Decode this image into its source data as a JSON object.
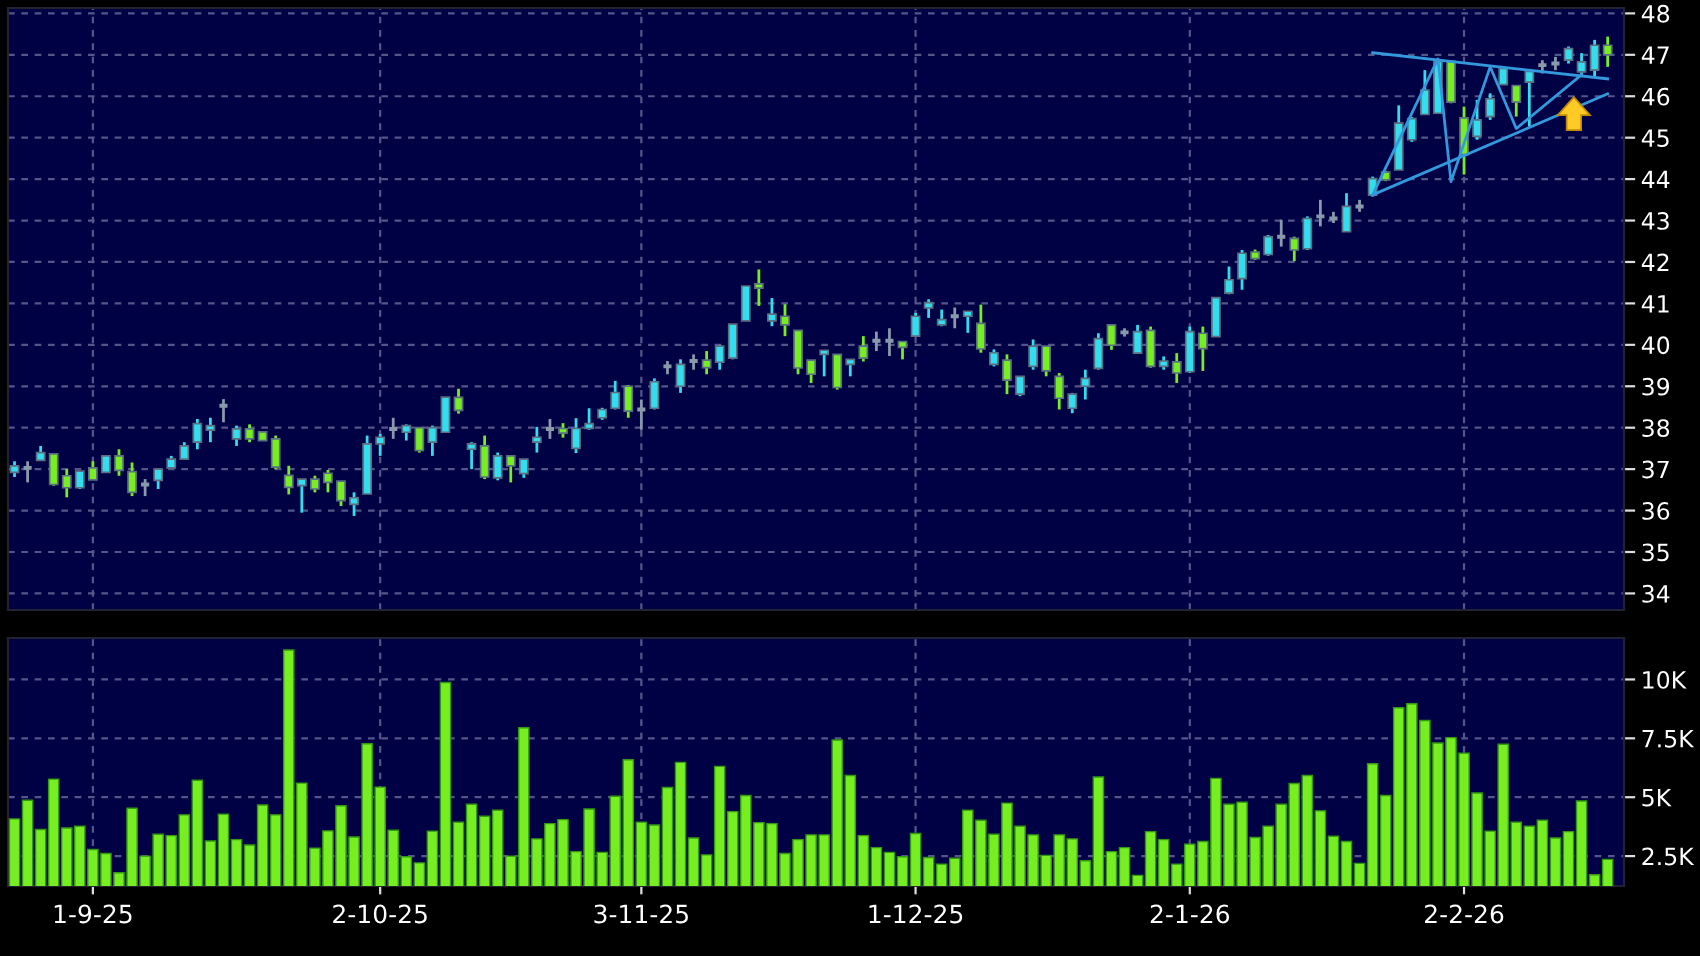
{
  "chart_data": [
    {
      "type": "candlestick",
      "categories": [
        null,
        null,
        null,
        null,
        null,
        null,
        null,
        null,
        null,
        null,
        null,
        null,
        null,
        null,
        null,
        null,
        null,
        null,
        null,
        null,
        null,
        null,
        null,
        null,
        null,
        null,
        null,
        null,
        null,
        null,
        null,
        null,
        null,
        null,
        null,
        null,
        null,
        null,
        null,
        null,
        null,
        null,
        null,
        null,
        null,
        null,
        null,
        null,
        null,
        null,
        null,
        null,
        null,
        null,
        null,
        null,
        null,
        null,
        null,
        null,
        null,
        null,
        null,
        null,
        null,
        null,
        null,
        null,
        null,
        null,
        null,
        null,
        null,
        null,
        null,
        null,
        null,
        null,
        null,
        null,
        null,
        null,
        null,
        null,
        null,
        null,
        null,
        null,
        null,
        null,
        null,
        null,
        null,
        null,
        null,
        null,
        null,
        null,
        null,
        null,
        null,
        null,
        null,
        null,
        null,
        null,
        null,
        null,
        null,
        null,
        null,
        null,
        null,
        null,
        null,
        null,
        null,
        null,
        null,
        null,
        null,
        null,
        null
      ],
      "ohlc": [
        [
          36.92,
          37.19,
          36.81,
          37.08
        ],
        [
          37.03,
          37.19,
          36.68,
          37.03
        ],
        [
          37.21,
          37.56,
          37.21,
          37.4
        ],
        [
          37.37,
          37.37,
          36.6,
          36.63
        ],
        [
          36.84,
          37.0,
          36.32,
          36.55
        ],
        [
          36.55,
          36.95,
          36.52,
          36.95
        ],
        [
          37.03,
          37.19,
          36.74,
          36.74
        ],
        [
          36.92,
          37.32,
          36.92,
          37.32
        ],
        [
          37.32,
          37.48,
          36.84,
          36.97
        ],
        [
          36.94,
          37.16,
          36.35,
          36.44
        ],
        [
          36.63,
          36.76,
          36.35,
          36.63
        ],
        [
          36.73,
          37.0,
          36.52,
          37.0
        ],
        [
          37.03,
          37.32,
          37.03,
          37.24
        ],
        [
          37.24,
          37.65,
          37.24,
          37.56
        ],
        [
          37.65,
          38.21,
          37.48,
          38.1
        ],
        [
          37.94,
          38.24,
          37.65,
          38.05
        ],
        [
          38.53,
          38.69,
          38.13,
          38.53
        ],
        [
          37.73,
          38.05,
          37.56,
          37.97
        ],
        [
          37.97,
          38.08,
          37.65,
          37.73
        ],
        [
          37.9,
          37.9,
          37.69,
          37.69
        ],
        [
          37.73,
          37.81,
          37.0,
          37.05
        ],
        [
          36.85,
          37.08,
          36.39,
          36.56
        ],
        [
          36.6,
          36.76,
          35.95,
          36.76
        ],
        [
          36.76,
          36.84,
          36.44,
          36.52
        ],
        [
          36.9,
          36.98,
          36.44,
          36.68
        ],
        [
          36.71,
          36.71,
          36.11,
          36.24
        ],
        [
          36.15,
          36.44,
          35.87,
          36.31
        ],
        [
          36.4,
          37.81,
          36.4,
          37.61
        ],
        [
          37.61,
          37.85,
          37.32,
          37.77
        ],
        [
          37.97,
          38.24,
          37.73,
          37.97
        ],
        [
          37.89,
          38.08,
          37.69,
          38.05
        ],
        [
          38.0,
          38.0,
          37.4,
          37.45
        ],
        [
          37.65,
          38.05,
          37.32,
          38.0
        ],
        [
          37.89,
          38.74,
          37.89,
          38.74
        ],
        [
          38.73,
          38.94,
          38.34,
          38.42
        ],
        [
          37.48,
          37.65,
          37.0,
          37.61
        ],
        [
          37.56,
          37.81,
          36.76,
          36.81
        ],
        [
          36.79,
          37.4,
          36.73,
          37.32
        ],
        [
          37.32,
          37.32,
          36.68,
          37.08
        ],
        [
          36.89,
          37.24,
          36.79,
          37.24
        ],
        [
          37.65,
          38.02,
          37.4,
          37.77
        ],
        [
          37.97,
          38.21,
          37.73,
          37.97
        ],
        [
          37.98,
          38.11,
          37.76,
          37.87
        ],
        [
          37.5,
          38.23,
          37.39,
          37.98
        ],
        [
          37.98,
          38.47,
          37.95,
          38.1
        ],
        [
          38.24,
          38.48,
          38.19,
          38.44
        ],
        [
          38.47,
          39.13,
          38.44,
          38.85
        ],
        [
          39.0,
          39.03,
          38.24,
          38.4
        ],
        [
          38.44,
          38.68,
          37.95,
          38.44
        ],
        [
          38.47,
          39.19,
          38.44,
          39.11
        ],
        [
          39.48,
          39.61,
          39.29,
          39.48
        ],
        [
          39.0,
          39.65,
          38.84,
          39.53
        ],
        [
          39.61,
          39.77,
          39.4,
          39.61
        ],
        [
          39.63,
          39.85,
          39.29,
          39.45
        ],
        [
          39.58,
          40.0,
          39.4,
          39.97
        ],
        [
          39.68,
          40.5,
          39.65,
          40.5
        ],
        [
          40.58,
          41.42,
          40.58,
          41.42
        ],
        [
          41.47,
          41.82,
          40.94,
          41.37
        ],
        [
          40.58,
          41.13,
          40.45,
          40.74
        ],
        [
          40.69,
          40.98,
          40.21,
          40.48
        ],
        [
          40.35,
          40.35,
          39.29,
          39.44
        ],
        [
          39.63,
          39.63,
          39.08,
          39.29
        ],
        [
          39.77,
          39.87,
          39.24,
          39.87
        ],
        [
          39.77,
          39.77,
          38.92,
          38.97
        ],
        [
          39.53,
          39.65,
          39.24,
          39.65
        ],
        [
          39.97,
          40.21,
          39.6,
          39.68
        ],
        [
          40.1,
          40.32,
          39.85,
          40.1
        ],
        [
          40.1,
          40.4,
          39.73,
          40.1
        ],
        [
          40.08,
          40.08,
          39.65,
          39.94
        ],
        [
          40.21,
          40.77,
          40.21,
          40.69
        ],
        [
          40.89,
          41.1,
          40.65,
          41.02
        ],
        [
          40.48,
          40.85,
          40.45,
          40.61
        ],
        [
          40.69,
          40.9,
          40.4,
          40.69
        ],
        [
          40.69,
          40.81,
          40.29,
          40.81
        ],
        [
          40.52,
          40.97,
          39.81,
          39.9
        ],
        [
          39.53,
          39.89,
          39.48,
          39.81
        ],
        [
          39.63,
          39.77,
          38.81,
          39.15
        ],
        [
          38.81,
          39.24,
          38.76,
          39.24
        ],
        [
          39.48,
          40.13,
          39.4,
          39.97
        ],
        [
          39.97,
          39.97,
          39.24,
          39.37
        ],
        [
          39.24,
          39.32,
          38.44,
          38.71
        ],
        [
          38.47,
          38.84,
          38.35,
          38.81
        ],
        [
          39.0,
          39.4,
          38.68,
          39.19
        ],
        [
          39.43,
          40.28,
          39.4,
          40.15
        ],
        [
          40.48,
          40.48,
          39.88,
          39.99
        ],
        [
          40.3,
          40.4,
          40.2,
          40.3
        ],
        [
          39.8,
          40.48,
          39.8,
          40.32
        ],
        [
          40.35,
          40.44,
          39.45,
          39.48
        ],
        [
          39.48,
          39.72,
          39.4,
          39.61
        ],
        [
          39.59,
          39.8,
          39.08,
          39.32
        ],
        [
          39.35,
          40.44,
          39.32,
          40.32
        ],
        [
          40.28,
          40.44,
          39.37,
          39.91
        ],
        [
          40.2,
          41.14,
          40.2,
          41.14
        ],
        [
          41.25,
          41.89,
          41.22,
          41.57
        ],
        [
          41.6,
          42.29,
          41.33,
          42.21
        ],
        [
          42.24,
          42.3,
          42.05,
          42.08
        ],
        [
          42.18,
          42.65,
          42.15,
          42.61
        ],
        [
          42.61,
          43.02,
          42.37,
          42.61
        ],
        [
          42.57,
          42.61,
          42.02,
          42.29
        ],
        [
          42.32,
          43.1,
          42.29,
          43.05
        ],
        [
          43.1,
          43.5,
          42.86,
          43.1
        ],
        [
          43.05,
          43.21,
          42.94,
          43.05
        ],
        [
          42.73,
          43.66,
          42.73,
          43.34
        ],
        [
          43.34,
          43.5,
          43.21,
          43.34
        ],
        [
          43.61,
          44.06,
          43.58,
          44.01
        ],
        [
          44.17,
          44.2,
          43.95,
          43.98
        ],
        [
          44.22,
          45.78,
          44.22,
          45.35
        ],
        [
          44.95,
          45.5,
          44.9,
          45.46
        ],
        [
          45.56,
          46.63,
          45.56,
          46.15
        ],
        [
          45.59,
          46.87,
          45.59,
          46.84
        ],
        [
          46.84,
          46.87,
          45.83,
          45.86
        ],
        [
          45.48,
          45.75,
          44.11,
          44.59
        ],
        [
          45.03,
          45.91,
          44.95,
          45.43
        ],
        [
          45.51,
          46.07,
          45.43,
          45.94
        ],
        [
          46.28,
          46.71,
          46.28,
          46.67
        ],
        [
          46.26,
          46.26,
          45.51,
          45.86
        ],
        [
          46.34,
          46.63,
          45.27,
          46.6
        ],
        [
          46.75,
          46.87,
          46.55,
          46.75
        ],
        [
          46.79,
          46.95,
          46.63,
          46.79
        ],
        [
          46.87,
          47.2,
          46.79,
          47.15
        ],
        [
          46.59,
          47.04,
          46.52,
          46.83
        ],
        [
          46.63,
          47.36,
          46.47,
          47.23
        ],
        [
          47.23,
          47.44,
          46.71,
          47.0
        ]
      ],
      "colors": [
        "#33ddee",
        "#8899aa",
        "#33ddee",
        "#77ee22",
        "#77ee22",
        "#33ddee",
        "#77ee22",
        "#33ddee",
        "#77ee22",
        "#77ee22",
        "#8899aa",
        "#33ddee",
        "#33ddee",
        "#33ddee",
        "#33ddee",
        "#33ddee",
        "#8899aa",
        "#33ddee",
        "#77ee22",
        "#77ee22",
        "#77ee22",
        "#77ee22",
        "#33ddee",
        "#77ee22",
        "#77ee22",
        "#77ee22",
        "#33ddee",
        "#33ddee",
        "#33ddee",
        "#8899aa",
        "#33ddee",
        "#77ee22",
        "#33ddee",
        "#33ddee",
        "#77ee22",
        "#33ddee",
        "#77ee22",
        "#33ddee",
        "#77ee22",
        "#33ddee",
        "#33ddee",
        "#8899aa",
        "#77ee22",
        "#33ddee",
        "#33ddee",
        "#33ddee",
        "#33ddee",
        "#77ee22",
        "#8899aa",
        "#33ddee",
        "#8899aa",
        "#33ddee",
        "#8899aa",
        "#77ee22",
        "#33ddee",
        "#33ddee",
        "#33ddee",
        "#77ee22",
        "#33ddee",
        "#77ee22",
        "#77ee22",
        "#77ee22",
        "#33ddee",
        "#77ee22",
        "#33ddee",
        "#77ee22",
        "#8899aa",
        "#8899aa",
        "#77ee22",
        "#33ddee",
        "#33ddee",
        "#33ddee",
        "#8899aa",
        "#33ddee",
        "#77ee22",
        "#33ddee",
        "#77ee22",
        "#33ddee",
        "#33ddee",
        "#77ee22",
        "#77ee22",
        "#33ddee",
        "#33ddee",
        "#33ddee",
        "#77ee22",
        "#8899aa",
        "#33ddee",
        "#77ee22",
        "#33ddee",
        "#77ee22",
        "#33ddee",
        "#77ee22",
        "#33ddee",
        "#33ddee",
        "#33ddee",
        "#77ee22",
        "#33ddee",
        "#8899aa",
        "#77ee22",
        "#33ddee",
        "#8899aa",
        "#8899aa",
        "#33ddee",
        "#8899aa",
        "#33ddee",
        "#77ee22",
        "#33ddee",
        "#33ddee",
        "#33ddee",
        "#33ddee",
        "#77ee22",
        "#77ee22",
        "#33ddee",
        "#33ddee",
        "#33ddee",
        "#77ee22",
        "#33ddee",
        "#8899aa",
        "#8899aa",
        "#33ddee",
        "#33ddee",
        "#33ddee",
        "#77ee22"
      ],
      "series": [
        {
          "type": "line",
          "color": "#3399dd",
          "values": [
            null,
            null,
            null,
            null,
            null,
            null,
            null,
            null,
            null,
            null,
            null,
            null,
            null,
            null,
            null,
            null,
            null,
            null,
            null,
            null,
            null,
            null,
            null,
            null,
            null,
            null,
            null,
            null,
            null,
            null,
            null,
            null,
            null,
            null,
            null,
            null,
            null,
            null,
            null,
            null,
            null,
            null,
            null,
            null,
            null,
            null,
            null,
            null,
            null,
            null,
            null,
            null,
            null,
            null,
            null,
            null,
            null,
            null,
            null,
            null,
            null,
            null,
            null,
            null,
            null,
            null,
            null,
            null,
            null,
            null,
            null,
            null,
            null,
            null,
            null,
            null,
            null,
            null,
            null,
            null,
            null,
            null,
            null,
            null,
            null,
            null,
            null,
            null,
            null,
            null,
            null,
            null,
            null,
            null,
            null,
            null,
            null,
            null,
            null,
            null,
            null,
            null,
            null,
            null,
            47.05,
            null,
            null,
            null,
            null,
            null,
            null,
            null,
            null,
            null,
            null,
            null,
            null,
            null,
            null,
            null,
            null,
            null,
            46.42
          ]
        },
        {
          "type": "line",
          "color": "#3399dd",
          "values": [
            null,
            null,
            null,
            null,
            null,
            null,
            null,
            null,
            null,
            null,
            null,
            null,
            null,
            null,
            null,
            null,
            null,
            null,
            null,
            null,
            null,
            null,
            null,
            null,
            null,
            null,
            null,
            null,
            null,
            null,
            null,
            null,
            null,
            null,
            null,
            null,
            null,
            null,
            null,
            null,
            null,
            null,
            null,
            null,
            null,
            null,
            null,
            null,
            null,
            null,
            null,
            null,
            null,
            null,
            null,
            null,
            null,
            null,
            null,
            null,
            null,
            null,
            null,
            null,
            null,
            null,
            null,
            null,
            null,
            null,
            null,
            null,
            null,
            null,
            null,
            null,
            null,
            null,
            null,
            null,
            null,
            null,
            null,
            null,
            null,
            null,
            null,
            null,
            null,
            null,
            null,
            null,
            null,
            null,
            null,
            null,
            null,
            null,
            null,
            null,
            null,
            null,
            null,
            null,
            43.62,
            null,
            null,
            null,
            null,
            null,
            null,
            null,
            null,
            null,
            null,
            null,
            null,
            null,
            null,
            null,
            null,
            null,
            46.06
          ]
        },
        {
          "type": "line",
          "color": "#3399dd",
          "values": [
            null,
            null,
            null,
            null,
            null,
            null,
            null,
            null,
            null,
            null,
            null,
            null,
            null,
            null,
            null,
            null,
            null,
            null,
            null,
            null,
            null,
            null,
            null,
            null,
            null,
            null,
            null,
            null,
            null,
            null,
            null,
            null,
            null,
            null,
            null,
            null,
            null,
            null,
            null,
            null,
            null,
            null,
            null,
            null,
            null,
            null,
            null,
            null,
            null,
            null,
            null,
            null,
            null,
            null,
            null,
            null,
            null,
            null,
            null,
            null,
            null,
            null,
            null,
            null,
            null,
            null,
            null,
            null,
            null,
            null,
            null,
            null,
            null,
            null,
            null,
            null,
            null,
            null,
            null,
            null,
            null,
            null,
            null,
            null,
            null,
            null,
            null,
            null,
            null,
            null,
            null,
            null,
            null,
            null,
            null,
            null,
            null,
            null,
            null,
            null,
            null,
            null,
            null,
            null,
            43.62,
            null,
            null,
            null,
            null,
            46.9,
            43.94,
            null,
            null,
            46.71,
            null,
            45.22,
            null,
            null,
            null,
            null,
            46.52,
            null,
            null
          ]
        }
      ],
      "ylim": [
        33.6,
        48.13
      ],
      "yticks": [
        34,
        35,
        36,
        37,
        38,
        39,
        40,
        41,
        42,
        43,
        44,
        45,
        46,
        47,
        48
      ],
      "grid": true,
      "tick_labels": "y"
    },
    {
      "type": "bar",
      "categories": [
        null,
        null,
        null,
        null,
        null,
        null,
        "1-9-25",
        null,
        null,
        null,
        null,
        null,
        null,
        null,
        null,
        null,
        null,
        null,
        null,
        null,
        null,
        null,
        null,
        null,
        null,
        null,
        null,
        null,
        "2-10-25",
        null,
        null,
        null,
        null,
        null,
        null,
        null,
        null,
        null,
        null,
        null,
        null,
        null,
        null,
        null,
        null,
        null,
        null,
        null,
        "3-11-25",
        null,
        null,
        null,
        null,
        null,
        null,
        null,
        null,
        null,
        null,
        null,
        null,
        null,
        null,
        null,
        null,
        null,
        null,
        null,
        null,
        "1-12-25",
        null,
        null,
        null,
        null,
        null,
        null,
        null,
        null,
        null,
        null,
        null,
        null,
        null,
        null,
        null,
        null,
        null,
        null,
        null,
        null,
        "2-1-26",
        null,
        null,
        null,
        null,
        null,
        null,
        null,
        null,
        null,
        null,
        null,
        null,
        null,
        null,
        null,
        null,
        null,
        null,
        null,
        null,
        "2-2-26",
        null,
        null,
        null,
        null,
        null,
        null,
        null,
        null,
        null,
        null,
        null
      ],
      "values": [
        4.08,
        4.87,
        3.63,
        5.77,
        3.69,
        3.77,
        2.78,
        2.61,
        1.79,
        4.53,
        2.5,
        3.43,
        3.37,
        4.25,
        5.72,
        3.14,
        4.28,
        3.2,
        2.97,
        4.67,
        4.25,
        11.25,
        5.6,
        2.84,
        3.57,
        4.64,
        3.31,
        7.27,
        5.43,
        3.6,
        2.47,
        2.21,
        3.56,
        9.87,
        3.94,
        4.7,
        4.19,
        4.45,
        2.5,
        7.95,
        3.23,
        3.88,
        4.05,
        2.69,
        4.5,
        2.66,
        5.04,
        6.59,
        3.94,
        3.82,
        5.41,
        6.48,
        3.27,
        2.55,
        6.31,
        4.39,
        5.07,
        3.92,
        3.88,
        2.61,
        3.2,
        3.4,
        3.4,
        7.43,
        5.92,
        3.37,
        2.86,
        2.66,
        2.47,
        3.46,
        2.44,
        2.16,
        2.41,
        4.45,
        4.02,
        3.43,
        4.75,
        3.77,
        3.4,
        2.53,
        3.4,
        3.23,
        2.3,
        5.86,
        2.69,
        2.86,
        1.68,
        3.54,
        3.2,
        2.16,
        3.01,
        3.12,
        5.8,
        4.7,
        4.79,
        3.29,
        3.77,
        4.7,
        5.58,
        5.92,
        4.42,
        3.34,
        3.12,
        2.19,
        6.42,
        5.07,
        8.8,
        8.97,
        8.26,
        7.3,
        7.53,
        6.87,
        5.18,
        3.56,
        7.25,
        3.94,
        3.77,
        4.02,
        3.27,
        3.54,
        4.84,
        1.71,
        2.36
      ],
      "color": "#77ee22",
      "ylim": [
        1.23,
        11.76
      ],
      "yticks": [
        {
          "value": 2.5,
          "label": "2.5K"
        },
        {
          "value": 5,
          "label": "5K"
        },
        {
          "value": 7.5,
          "label": "7.5K"
        },
        {
          "value": 10,
          "label": "10K"
        }
      ],
      "grid": true
    }
  ]
}
